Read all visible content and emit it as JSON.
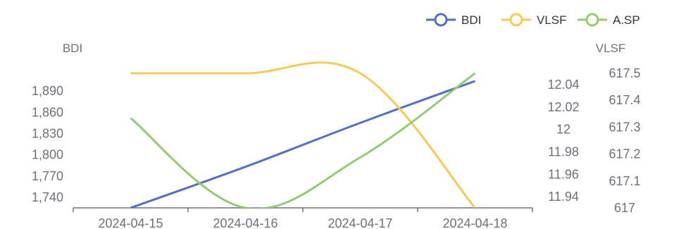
{
  "chart_data": {
    "type": "line",
    "categories": [
      "2024-04-15",
      "2024-04-16",
      "2024-04-17",
      "2024-04-18"
    ],
    "series": [
      {
        "name": "BDI",
        "axis": "BDI",
        "color": "#5470c6",
        "values": [
          1725,
          1783,
          1845,
          1904
        ]
      },
      {
        "name": "VLSF",
        "axis": "VLSF",
        "color": "#fac858",
        "values": [
          617.5,
          617.5,
          617.5,
          617.0
        ]
      },
      {
        "name": "A.SP",
        "axis": "A.SP",
        "color": "#91cc75",
        "values": [
          12.01,
          11.93,
          11.975,
          12.05
        ]
      }
    ],
    "axes": {
      "BDI": {
        "label": "BDI",
        "ticks": [
          "1,740",
          "1,770",
          "1,800",
          "1,830",
          "1,860",
          "1,890"
        ],
        "tick_values": [
          1740,
          1770,
          1800,
          1830,
          1860,
          1890
        ],
        "ylim": [
          1725,
          1915
        ]
      },
      "A.SP": {
        "label": "A.SP",
        "ticks": [
          "11.94",
          "11.96",
          "11.98",
          "12",
          "12.02",
          "12.04"
        ],
        "tick_values": [
          11.94,
          11.96,
          11.98,
          12.0,
          12.02,
          12.04
        ],
        "ylim": [
          11.93,
          12.05
        ]
      },
      "VLSF": {
        "label": "VLSF",
        "ticks": [
          "617",
          "617.1",
          "617.2",
          "617.3",
          "617.4",
          "617.5"
        ],
        "tick_values": [
          617.0,
          617.1,
          617.2,
          617.3,
          617.4,
          617.5
        ],
        "ylim": [
          617.0,
          617.5
        ]
      }
    },
    "legend_position": "top-right",
    "grid": false,
    "smooth": true
  }
}
